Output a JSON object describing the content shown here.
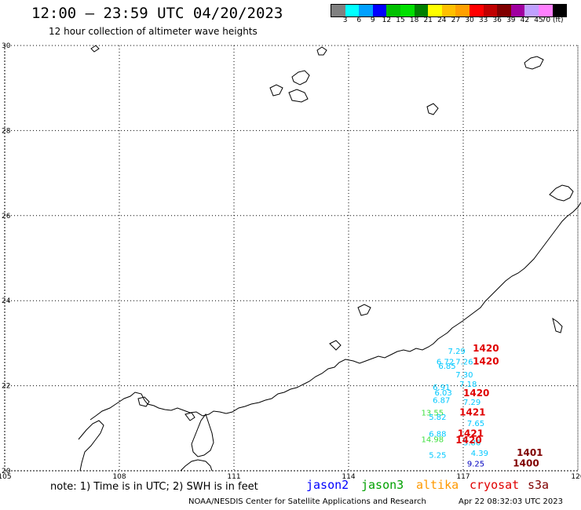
{
  "header": {
    "title": "12:00 – 23:59 UTC 04/20/2023",
    "subtitle": "12 hour collection of altimeter wave heights"
  },
  "colorbar": {
    "colors": [
      "#808080",
      "#00ffff",
      "#00a0ff",
      "#0000ff",
      "#00c000",
      "#00e000",
      "#008000",
      "#ffff00",
      "#ffc000",
      "#ffa000",
      "#ff0000",
      "#c00000",
      "#800000",
      "#a000a0",
      "#c0a0ff",
      "#ff80ff",
      "#000000"
    ],
    "labels": [
      "3",
      "6",
      "9",
      "12",
      "15",
      "18",
      "21",
      "24",
      "27",
      "30",
      "33",
      "36",
      "39",
      "42",
      "45",
      "70 (ft)"
    ]
  },
  "axes": {
    "x_ticks": [
      "105",
      "108",
      "111",
      "114",
      "117",
      "120"
    ],
    "y_ticks": [
      "30",
      "28",
      "26",
      "24",
      "22",
      "20"
    ],
    "lon_range": [
      105,
      120
    ],
    "lat_range": [
      20,
      30
    ],
    "grid": "dotted"
  },
  "observations": [
    {
      "text": "7.29",
      "lon": 116.6,
      "lat": 22.75,
      "color": "#00c8ff"
    },
    {
      "text": "6.72",
      "lon": 116.3,
      "lat": 22.5,
      "color": "#00c8ff"
    },
    {
      "text": "7.26",
      "lon": 116.8,
      "lat": 22.5,
      "color": "#00c8ff"
    },
    {
      "text": "6.85",
      "lon": 116.35,
      "lat": 22.4,
      "color": "#00c8ff"
    },
    {
      "text": "7.30",
      "lon": 116.8,
      "lat": 22.2,
      "color": "#00c8ff"
    },
    {
      "text": "7.18",
      "lon": 116.9,
      "lat": 21.97,
      "color": "#00c8ff"
    },
    {
      "text": "6.91",
      "lon": 116.2,
      "lat": 21.9,
      "color": "#00c8ff"
    },
    {
      "text": "6.03",
      "lon": 116.25,
      "lat": 21.77,
      "color": "#00c8ff"
    },
    {
      "text": "6.87",
      "lon": 116.2,
      "lat": 21.6,
      "color": "#00c8ff"
    },
    {
      "text": "7.29",
      "lon": 117.0,
      "lat": 21.55,
      "color": "#00c8ff"
    },
    {
      "text": "13.55",
      "lon": 115.9,
      "lat": 21.3,
      "color": "#40e040"
    },
    {
      "text": "5.82",
      "lon": 116.1,
      "lat": 21.2,
      "color": "#00c8ff"
    },
    {
      "text": "7.65",
      "lon": 117.1,
      "lat": 21.05,
      "color": "#00c8ff"
    },
    {
      "text": "6.88",
      "lon": 116.1,
      "lat": 20.8,
      "color": "#00c8ff"
    },
    {
      "text": "14.98",
      "lon": 115.9,
      "lat": 20.67,
      "color": "#40e040"
    },
    {
      "text": "5.86",
      "lon": 117.0,
      "lat": 20.6,
      "color": "#00c8ff"
    },
    {
      "text": "5.25",
      "lon": 116.1,
      "lat": 20.3,
      "color": "#00c8ff"
    },
    {
      "text": "4.39",
      "lon": 117.2,
      "lat": 20.35,
      "color": "#00c8ff"
    },
    {
      "text": "9.25",
      "lon": 117.1,
      "lat": 20.1,
      "color": "#0000c0"
    }
  ],
  "cycle_labels": [
    {
      "text": "1420",
      "lon": 117.25,
      "lat": 22.8,
      "color": "#e00000"
    },
    {
      "text": "1420",
      "lon": 117.25,
      "lat": 22.5,
      "color": "#e00000"
    },
    {
      "text": "1420",
      "lon": 117.0,
      "lat": 21.75,
      "color": "#e00000"
    },
    {
      "text": "1421",
      "lon": 116.9,
      "lat": 21.3,
      "color": "#e00000"
    },
    {
      "text": "1421",
      "lon": 116.85,
      "lat": 20.8,
      "color": "#e00000"
    },
    {
      "text": "1420",
      "lon": 116.8,
      "lat": 20.65,
      "color": "#e00000"
    },
    {
      "text": "1401",
      "lon": 118.4,
      "lat": 20.35,
      "color": "#800000"
    },
    {
      "text": "1400",
      "lon": 118.3,
      "lat": 20.1,
      "color": "#800000"
    }
  ],
  "legend": {
    "note": "note:  1) Time is in UTC;  2) SWH is in feet",
    "items": [
      {
        "label": "jason2",
        "color": "#0000ff"
      },
      {
        "label": "jason3",
        "color": "#00a000"
      },
      {
        "label": "altika",
        "color": "#ff9900"
      },
      {
        "label": "cryosat",
        "color": "#e00000"
      },
      {
        "label": "s3a",
        "color": "#800000"
      }
    ]
  },
  "footer": {
    "credit": "NOAA/NESDIS Center for Satellite Applications and Research",
    "timestamp": "Apr 22 08:32:03 UTC 2023"
  }
}
